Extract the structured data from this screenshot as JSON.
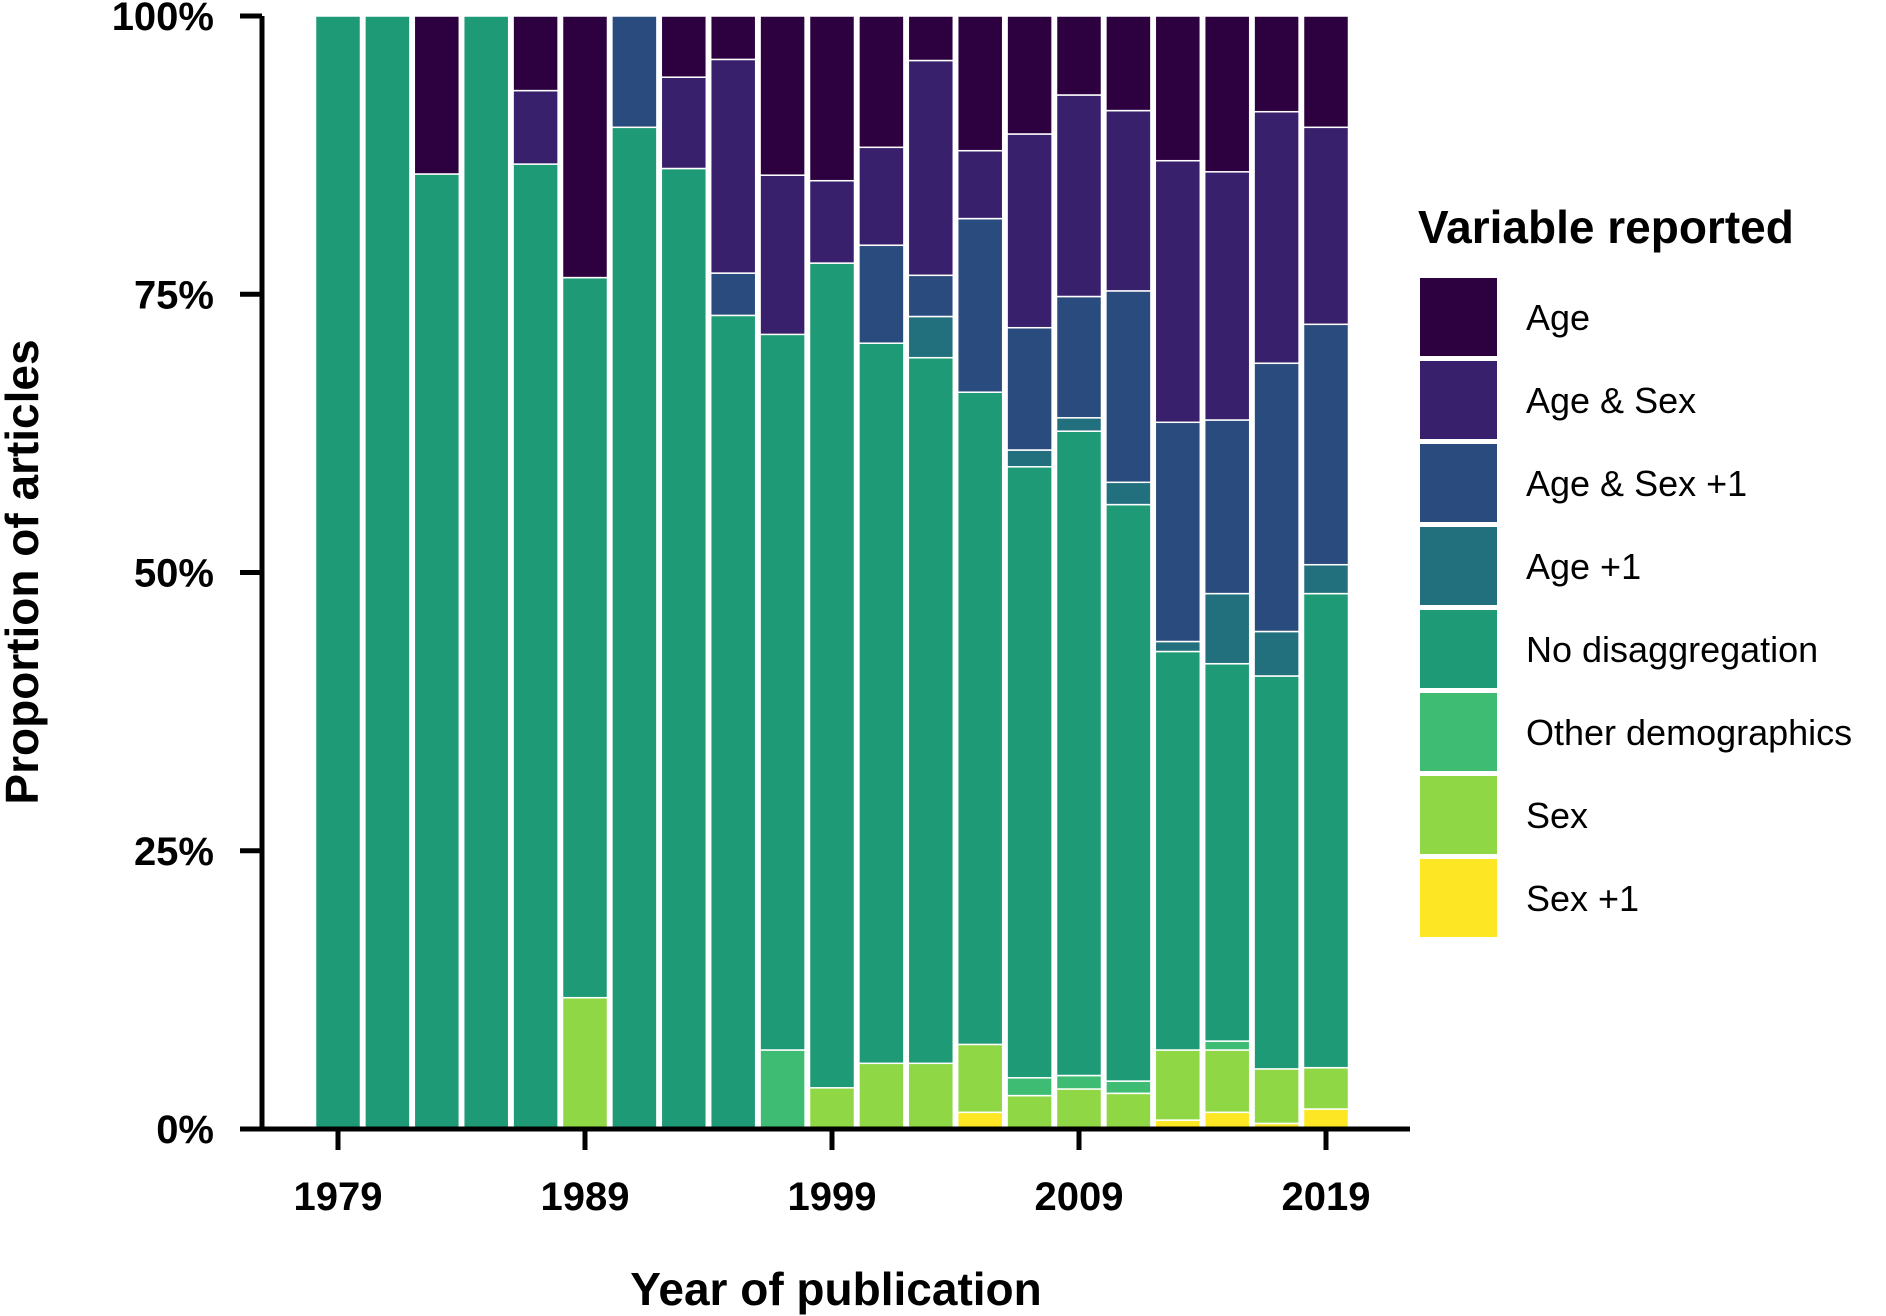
{
  "chart_data": {
    "type": "bar",
    "stacked": true,
    "percent": true,
    "xlabel": "Year of publication",
    "ylabel": "Proportion of articles",
    "ylim": [
      0,
      100
    ],
    "yticks": [
      "0%",
      "25%",
      "50%",
      "75%",
      "100%"
    ],
    "xticks": [
      "1979",
      "1989",
      "1999",
      "2009",
      "2019"
    ],
    "xtick_years": [
      1979,
      1989,
      1999,
      2009,
      2019
    ],
    "legend": {
      "title": "Variable reported",
      "placement": "right"
    },
    "x": [
      1979,
      1981,
      1983,
      1985,
      1987,
      1989,
      1991,
      1993,
      1995,
      1997,
      1999,
      2001,
      2003,
      2005,
      2007,
      2009,
      2011,
      2013,
      2015,
      2017,
      2019
    ],
    "series": [
      {
        "name": "Sex +1",
        "color": "#FDE725",
        "values": [
          0,
          0,
          0,
          0,
          0,
          0,
          0,
          0,
          0,
          0,
          0,
          0,
          0,
          1.5,
          0,
          0,
          0,
          0.8,
          1.5,
          0.5,
          1.8
        ]
      },
      {
        "name": "Sex",
        "color": "#8FD744",
        "values": [
          0,
          0,
          0,
          0,
          0,
          11.8,
          0,
          0,
          0,
          0,
          3.7,
          5.9,
          5.9,
          6.1,
          3.0,
          3.6,
          3.2,
          6.3,
          5.6,
          4.9,
          3.7
        ]
      },
      {
        "name": "Other demographics",
        "color": "#3FBC73",
        "values": [
          0,
          0,
          0,
          0,
          0,
          0,
          0,
          0,
          0,
          7.1,
          0,
          0,
          0,
          0,
          1.6,
          1.2,
          1.1,
          0,
          0.8,
          0,
          0
        ]
      },
      {
        "name": "No disaggregation",
        "color": "#1F9A77",
        "values": [
          100,
          100,
          85.8,
          100,
          86.7,
          64.7,
          90.0,
          86.3,
          73.1,
          64.3,
          74.1,
          64.7,
          63.4,
          58.6,
          54.9,
          57.9,
          51.8,
          35.8,
          33.9,
          35.3,
          42.6
        ]
      },
      {
        "name": "Age +1",
        "color": "#22707E",
        "values": [
          0,
          0,
          0,
          0,
          0,
          0,
          0,
          0,
          0,
          0,
          0,
          0,
          3.7,
          0,
          1.5,
          1.2,
          2.0,
          0.9,
          6.3,
          4.0,
          2.6
        ]
      },
      {
        "name": "Age & Sex +1",
        "color": "#2A4B7E",
        "values": [
          0,
          0,
          0,
          0,
          0,
          0,
          10.0,
          0,
          3.8,
          0,
          0,
          8.8,
          3.7,
          15.6,
          11.0,
          10.9,
          17.2,
          19.7,
          15.6,
          24.1,
          21.6
        ]
      },
      {
        "name": "Age & Sex",
        "color": "#39206C",
        "values": [
          0,
          0,
          0,
          0,
          6.6,
          0,
          0,
          8.2,
          19.2,
          14.3,
          7.4,
          8.8,
          19.3,
          6.1,
          17.4,
          18.1,
          16.2,
          23.5,
          22.3,
          22.6,
          17.7
        ]
      },
      {
        "name": "Age",
        "color": "#2D0040",
        "values": [
          0,
          0,
          14.2,
          0,
          6.7,
          23.5,
          0,
          5.5,
          3.9,
          14.3,
          14.8,
          11.8,
          4.0,
          12.1,
          10.6,
          7.1,
          8.5,
          13.0,
          14.0,
          8.6,
          10.0
        ]
      }
    ],
    "legend_order": [
      "Age",
      "Age & Sex",
      "Age & Sex +1",
      "Age +1",
      "No disaggregation",
      "Other demographics",
      "Sex",
      "Sex +1"
    ]
  }
}
